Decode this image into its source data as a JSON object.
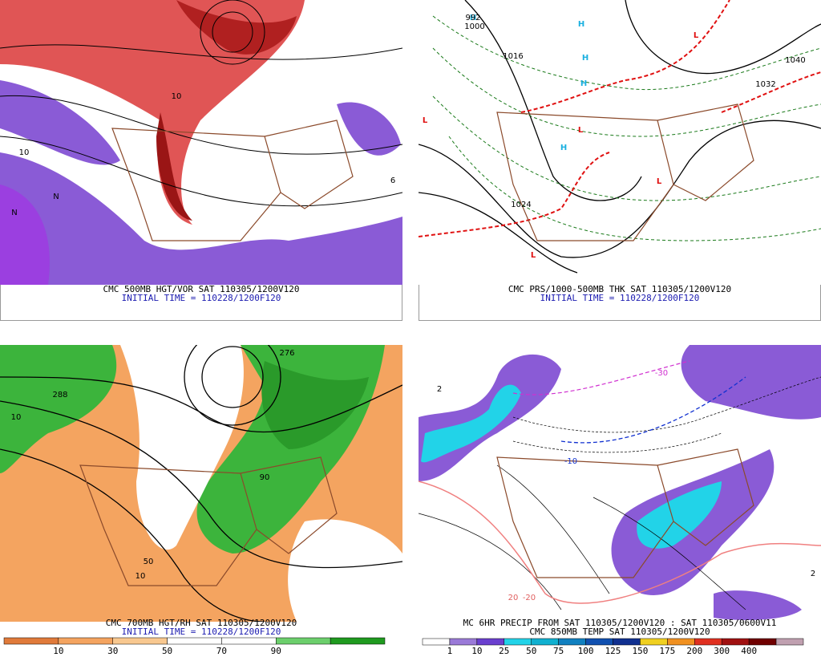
{
  "panels": [
    {
      "captions": [
        "CMC 500MB HGT/VOR SAT 110305/1200V120",
        "INITIAL TIME = 110228/1200F120"
      ],
      "labels": [
        "10",
        "N",
        "N",
        "10",
        "6"
      ]
    },
    {
      "captions": [
        "CMC PRS/1000-500MB THK SAT 110305/1200V120",
        "INITIAL TIME = 110228/1200F120"
      ],
      "labels": [
        "H",
        "H",
        "H",
        "H",
        "H",
        "L",
        "L",
        "L",
        "L",
        "L",
        "992",
        "1000",
        "1016",
        "1024",
        "1032",
        "1040"
      ]
    },
    {
      "captions": [
        "CMC 700MB HGT/RH SAT 110305/1200V120",
        "INITIAL TIME = 110228/1200F120"
      ],
      "labels": [
        "288",
        "276",
        "10",
        "50",
        "90",
        "10"
      ],
      "legend": [
        "10",
        "30",
        "50",
        "70",
        "90"
      ]
    },
    {
      "captions": [
        "MC 6HR PRECIP FROM SAT 110305/1200V120 : SAT 110305/0600V11",
        "CMC 850MB TEMP SAT 110305/1200V120"
      ],
      "labels": [
        "2",
        "-10",
        "-20",
        "-30",
        "2",
        "20"
      ],
      "legend": [
        "1",
        "10",
        "25",
        "50",
        "75",
        "100",
        "125",
        "150",
        "175",
        "200",
        "300",
        "400"
      ]
    }
  ]
}
